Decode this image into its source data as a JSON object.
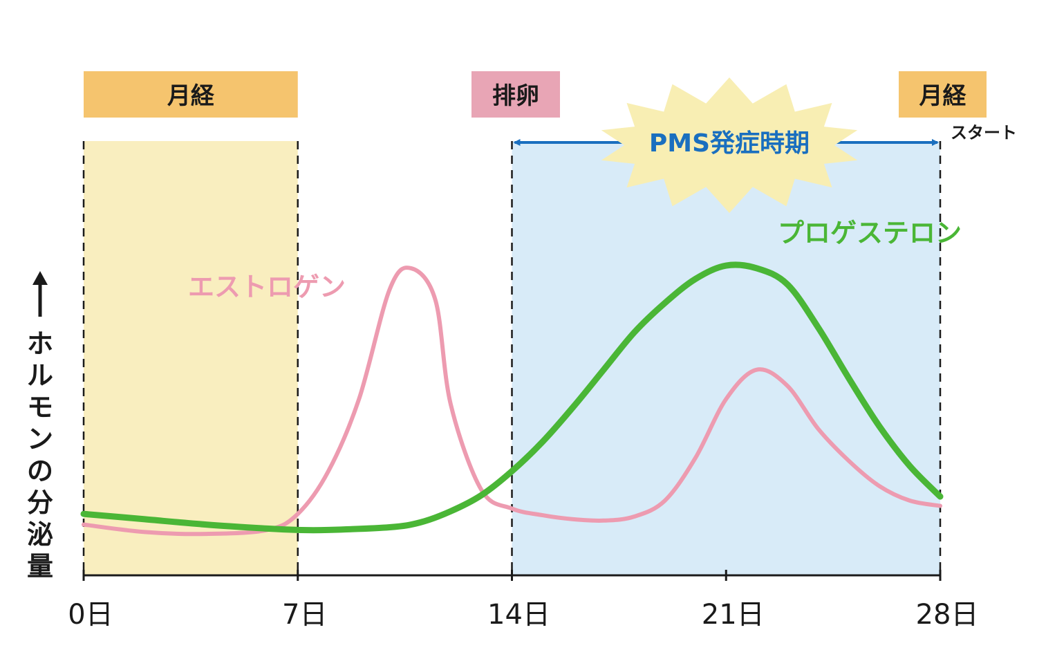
{
  "chart_data": {
    "type": "line",
    "title": "",
    "ylabel": "↑ホルモンの分泌量",
    "xlabel": "",
    "xlim": [
      0,
      28
    ],
    "x_ticks": [
      {
        "value": 0,
        "label": "0日"
      },
      {
        "value": 7,
        "label": "7日"
      },
      {
        "value": 14,
        "label": "14日"
      },
      {
        "value": 21,
        "label": "21日"
      },
      {
        "value": 28,
        "label": "28日"
      }
    ],
    "regions": [
      {
        "label": "月経",
        "start": 0,
        "end": 7,
        "color": "#f9eebf",
        "label_color": "#f5c46e"
      },
      {
        "label": "",
        "start": 14,
        "end": 28,
        "color": "#d8ebf8",
        "label_color": ""
      }
    ],
    "phase_labels": [
      {
        "text": "月経",
        "at": 3.5,
        "color": "#f5c46e"
      },
      {
        "text": "排卵",
        "at": 14.1,
        "color": "#e8a5b5"
      },
      {
        "text": "月経",
        "at": 28.1,
        "color": "#f5c46e"
      },
      {
        "text": "スタート",
        "at": 29.6,
        "color": ""
      }
    ],
    "pms_period": {
      "label": "PMS発症時期",
      "start": 14,
      "end": 28,
      "arrow_color": "#1a6fbf",
      "burst_color": "#f8eeb3"
    },
    "series": [
      {
        "name": "エストロゲン",
        "color": "#ed9bb0",
        "x": [
          0,
          2,
          4,
          6,
          7,
          8,
          9,
          10,
          10.7,
          11.5,
          12,
          13,
          14,
          15,
          16,
          17,
          18,
          19,
          20,
          21,
          22,
          23,
          24,
          25,
          26,
          27,
          28
        ],
        "values": [
          1.9,
          1.62,
          1.55,
          1.7,
          2.3,
          3.9,
          6.6,
          10.7,
          11.5,
          10.3,
          6.4,
          3.2,
          2.5,
          2.25,
          2.1,
          2.05,
          2.2,
          2.8,
          4.4,
          6.6,
          7.7,
          7.1,
          5.5,
          4.3,
          3.35,
          2.8,
          2.6
        ]
      },
      {
        "name": "プロゲステロン",
        "color": "#4ab636",
        "x": [
          0,
          2,
          4,
          6,
          7,
          8,
          10,
          11,
          12,
          13,
          14,
          15,
          16,
          17,
          18,
          19,
          20,
          21,
          22,
          23,
          24,
          25,
          26,
          27,
          28
        ],
        "values": [
          2.3,
          2.1,
          1.9,
          1.75,
          1.7,
          1.7,
          1.8,
          1.98,
          2.4,
          3.0,
          3.9,
          5.0,
          6.3,
          7.7,
          9.1,
          10.2,
          11.1,
          11.6,
          11.5,
          10.9,
          9.3,
          7.4,
          5.6,
          4.1,
          2.95
        ]
      }
    ],
    "series_label_colors": {
      "estrogen": "#ed9bb0",
      "progesterone": "#4ab636"
    },
    "ylim": [
      0,
      13
    ],
    "grid": false,
    "legend": "inline labels"
  }
}
